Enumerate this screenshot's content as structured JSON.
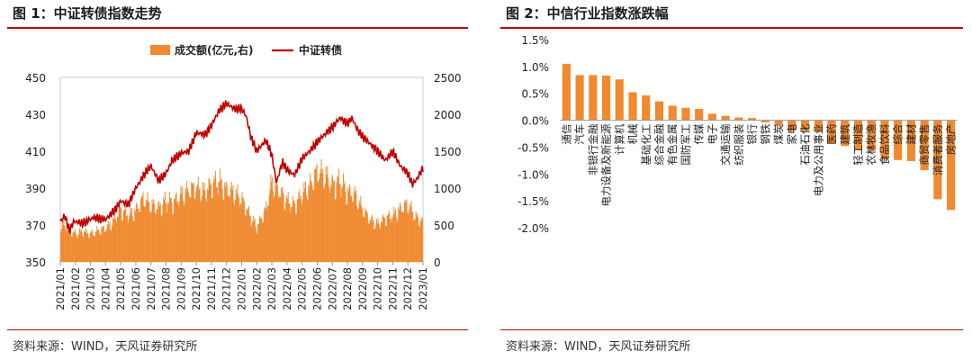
{
  "figures": [
    {
      "title": "图 1：中证转债指数走势",
      "source": "资料来源：WIND，天风证券研究所"
    },
    {
      "title": "图 2：中信行业指数涨跌幅",
      "source": "资料来源：WIND，天风证券研究所"
    }
  ],
  "colors": {
    "bar": "#f0892f",
    "line": "#c00000",
    "title_rule": "#c00000"
  },
  "chart_data": [
    {
      "type": "bar+line",
      "title": "中证转债指数走势",
      "legend": [
        "成交额(亿元,右)",
        "中证转债"
      ],
      "legend_position": "top",
      "x_tick_labels": [
        "2021/01",
        "2021/02",
        "2021/03",
        "2021/04",
        "2021/05",
        "2021/06",
        "2021/07",
        "2021/08",
        "2021/09",
        "2021/10",
        "2021/11",
        "2021/12",
        "2022/01",
        "2022/02",
        "2022/03",
        "2022/04",
        "2022/05",
        "2022/06",
        "2022/07",
        "2022/08",
        "2022/09",
        "2022/10",
        "2022/11",
        "2022/12",
        "2023/01"
      ],
      "left_axis": {
        "ticks": [
          "450",
          "430",
          "410",
          "390",
          "370",
          "350"
        ],
        "ylim": [
          350,
          450
        ]
      },
      "right_axis": {
        "ticks": [
          "2500",
          "2000",
          "1500",
          "1000",
          "500",
          "0"
        ],
        "ylim": [
          0,
          2500
        ]
      },
      "series": [
        {
          "name": "中证转债",
          "axis": "left",
          "type": "line",
          "keypoints": [
            [
              0,
              372
            ],
            [
              0.3,
              375
            ],
            [
              0.6,
              367
            ],
            [
              0.9,
              372
            ],
            [
              1.5,
              371
            ],
            [
              2.2,
              374
            ],
            [
              3,
              373
            ],
            [
              3.6,
              378
            ],
            [
              4,
              383
            ],
            [
              4.5,
              381
            ],
            [
              5,
              390
            ],
            [
              5.6,
              398
            ],
            [
              6,
              402
            ],
            [
              6.5,
              394
            ],
            [
              7,
              398
            ],
            [
              7.4,
              405
            ],
            [
              8,
              409
            ],
            [
              8.5,
              410
            ],
            [
              9,
              420
            ],
            [
              9.6,
              419
            ],
            [
              10,
              424
            ],
            [
              10.5,
              432
            ],
            [
              11,
              436
            ],
            [
              11.5,
              433
            ],
            [
              12,
              433
            ],
            [
              12.3,
              429
            ],
            [
              12.6,
              418
            ],
            [
              13,
              410
            ],
            [
              13.6,
              416
            ],
            [
              14,
              408
            ],
            [
              14.3,
              393
            ],
            [
              14.7,
              404
            ],
            [
              15,
              400
            ],
            [
              15.5,
              397
            ],
            [
              16,
              406
            ],
            [
              16.5,
              410
            ],
            [
              17,
              415
            ],
            [
              17.6,
              420
            ],
            [
              18,
              423
            ],
            [
              18.5,
              428
            ],
            [
              19,
              425
            ],
            [
              19.3,
              428
            ],
            [
              19.7,
              421
            ],
            [
              20,
              418
            ],
            [
              20.5,
              414
            ],
            [
              21,
              410
            ],
            [
              21.5,
              405
            ],
            [
              22,
              410
            ],
            [
              22.5,
              402
            ],
            [
              23,
              398
            ],
            [
              23.3,
              392
            ],
            [
              23.6,
              395
            ],
            [
              24,
              401
            ]
          ]
        },
        {
          "name": "成交额(亿元,右)",
          "axis": "right",
          "type": "area",
          "keypoints": [
            [
              0,
              520
            ],
            [
              0.5,
              460
            ],
            [
              1,
              380
            ],
            [
              1.5,
              420
            ],
            [
              2,
              380
            ],
            [
              2.5,
              430
            ],
            [
              3,
              460
            ],
            [
              3.5,
              560
            ],
            [
              4,
              720
            ],
            [
              4.5,
              640
            ],
            [
              5,
              700
            ],
            [
              5.5,
              870
            ],
            [
              6,
              780
            ],
            [
              6.5,
              740
            ],
            [
              7,
              850
            ],
            [
              7.5,
              820
            ],
            [
              8,
              920
            ],
            [
              8.5,
              980
            ],
            [
              9,
              1020
            ],
            [
              9.5,
              960
            ],
            [
              10,
              1060
            ],
            [
              10.5,
              1120
            ],
            [
              11,
              980
            ],
            [
              11.5,
              960
            ],
            [
              12,
              860
            ],
            [
              12.6,
              620
            ],
            [
              13,
              480
            ],
            [
              13.6,
              720
            ],
            [
              14,
              1100
            ],
            [
              14.6,
              940
            ],
            [
              15,
              840
            ],
            [
              15.5,
              780
            ],
            [
              16,
              940
            ],
            [
              16.5,
              1040
            ],
            [
              17,
              1240
            ],
            [
              17.5,
              1200
            ],
            [
              18,
              1060
            ],
            [
              18.5,
              1120
            ],
            [
              19,
              960
            ],
            [
              19.5,
              920
            ],
            [
              20,
              720
            ],
            [
              20.5,
              580
            ],
            [
              21,
              520
            ],
            [
              21.5,
              600
            ],
            [
              22,
              640
            ],
            [
              22.5,
              720
            ],
            [
              23,
              800
            ],
            [
              23.5,
              620
            ],
            [
              24,
              540
            ]
          ]
        }
      ]
    },
    {
      "type": "bar",
      "title": "中信行业指数涨跌幅",
      "ylabel": "",
      "y_ticks": [
        "1.5%",
        "1.0%",
        "0.5%",
        "0.0%",
        "-0.5%",
        "-1.0%",
        "-1.5%",
        "-2.0%"
      ],
      "ylim": [
        -2.0,
        1.5
      ],
      "categories": [
        "通信",
        "汽车",
        "非银行金融",
        "电力设备及新能源",
        "计算机",
        "机械",
        "基础化工",
        "综合金融",
        "有色金属",
        "国防军工",
        "传媒",
        "电子",
        "交通运输",
        "纺织服装",
        "银行",
        "钢铁",
        "煤炭",
        "家电",
        "石油石化",
        "电力及公用事业",
        "医药",
        "建筑",
        "轻工制造",
        "农林牧渔",
        "食品饮料",
        "综合",
        "建材",
        "商贸零售",
        "消费者服务",
        "房地产"
      ],
      "values": [
        1.05,
        0.84,
        0.84,
        0.83,
        0.76,
        0.52,
        0.46,
        0.35,
        0.27,
        0.23,
        0.21,
        0.12,
        0.08,
        0.05,
        0.04,
        -0.04,
        -0.1,
        -0.2,
        -0.2,
        -0.22,
        -0.44,
        -0.48,
        -0.55,
        -0.57,
        -0.72,
        -0.74,
        -0.76,
        -0.93,
        -1.47,
        -1.67
      ]
    }
  ]
}
